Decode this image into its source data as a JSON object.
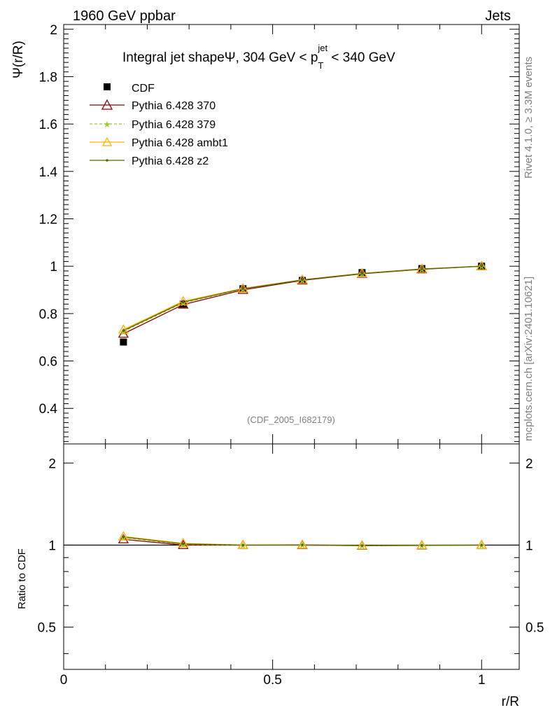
{
  "header": {
    "left": "1960 GeV ppbar",
    "right": "Jets"
  },
  "side_labels": {
    "rivet": "Rivet 4.1.0, ≥ 3.3M events",
    "mcplots": "mcplots.cern.ch [arXiv:2401.10621]"
  },
  "chart_data": {
    "type": "line",
    "title_parts": {
      "prefix": "Integral jet shapeΨ, 304 GeV < p",
      "sup": "jet",
      "sub": "T",
      "suffix": " < 340 GeV"
    },
    "ylabel": "Ψ(r/R)",
    "xlabel": "r/R",
    "ratio_ylabel": "Ratio to CDF",
    "watermark": "(CDF_2005_I682179)",
    "xlim": [
      0,
      1.09
    ],
    "ylim": [
      0.25,
      2.02
    ],
    "ratio_ylim": [
      0.35,
      2.35
    ],
    "x_ticks": [
      "0",
      "0.5",
      "1"
    ],
    "x_tick_values": [
      0,
      0.5,
      1
    ],
    "y_ticks": [
      "0.4",
      "0.6",
      "0.8",
      "1",
      "1.2",
      "1.4",
      "1.6",
      "1.8",
      "2"
    ],
    "y_tick_values": [
      0.4,
      0.6,
      0.8,
      1.0,
      1.2,
      1.4,
      1.6,
      1.8,
      2.0
    ],
    "ratio_ticks": [
      "0.5",
      "1",
      "2"
    ],
    "ratio_tick_values": [
      0.5,
      1,
      2
    ],
    "x": [
      0.143,
      0.286,
      0.429,
      0.571,
      0.714,
      0.857,
      1.0
    ],
    "data": {
      "name": "CDF",
      "values": [
        0.68,
        0.84,
        0.905,
        0.94,
        0.973,
        0.99,
        1.0
      ]
    },
    "series": [
      {
        "name": "Pythia 6.428 370",
        "color": "#8b0000",
        "marker": "triangle-open",
        "dash": "",
        "values": [
          0.715,
          0.838,
          0.9,
          0.94,
          0.968,
          0.987,
          1.0
        ],
        "ratio": [
          1.05,
          1.0,
          1.0,
          1.0,
          0.995,
          0.997,
          1.0
        ]
      },
      {
        "name": "Pythia 6.428 379",
        "color": "#99cc33",
        "marker": "star",
        "dash": "4,3",
        "values": [
          0.725,
          0.845,
          0.904,
          0.942,
          0.969,
          0.988,
          1.0
        ],
        "ratio": [
          1.066,
          1.006,
          0.999,
          1.002,
          0.996,
          0.998,
          1.0
        ]
      },
      {
        "name": "Pythia 6.428 ambt1",
        "color": "#ffb000",
        "marker": "triangle-open",
        "dash": "",
        "values": [
          0.732,
          0.852,
          0.906,
          0.943,
          0.97,
          0.989,
          1.0
        ],
        "ratio": [
          1.076,
          1.014,
          1.001,
          1.003,
          0.997,
          0.999,
          1.0
        ]
      },
      {
        "name": "Pythia 6.428 z2",
        "color": "#556b00",
        "marker": "dot",
        "dash": "",
        "values": [
          0.728,
          0.848,
          0.905,
          0.942,
          0.969,
          0.988,
          1.0
        ],
        "ratio": [
          1.07,
          1.01,
          1.0,
          1.002,
          0.996,
          0.998,
          1.0
        ]
      }
    ]
  }
}
